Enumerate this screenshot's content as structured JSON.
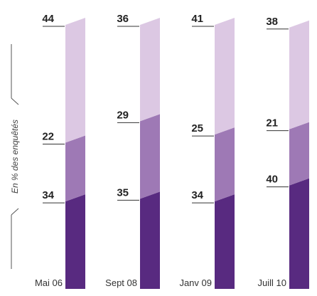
{
  "chart_data": {
    "type": "bar",
    "stacked": true,
    "ylabel": "En % des enquêtés",
    "categories": [
      "Mai 06",
      "Sept 08",
      "Janv 09",
      "Juill 10"
    ],
    "series": [
      {
        "values": [
          34,
          35,
          34,
          40
        ],
        "color": "#582a80"
      },
      {
        "values": [
          22,
          29,
          25,
          21
        ],
        "color": "#9e79b5"
      },
      {
        "values": [
          44,
          36,
          41,
          38
        ],
        "color": "#dcc8e3"
      }
    ],
    "ylim": [
      0,
      100
    ],
    "grid": false,
    "legend": "none"
  }
}
